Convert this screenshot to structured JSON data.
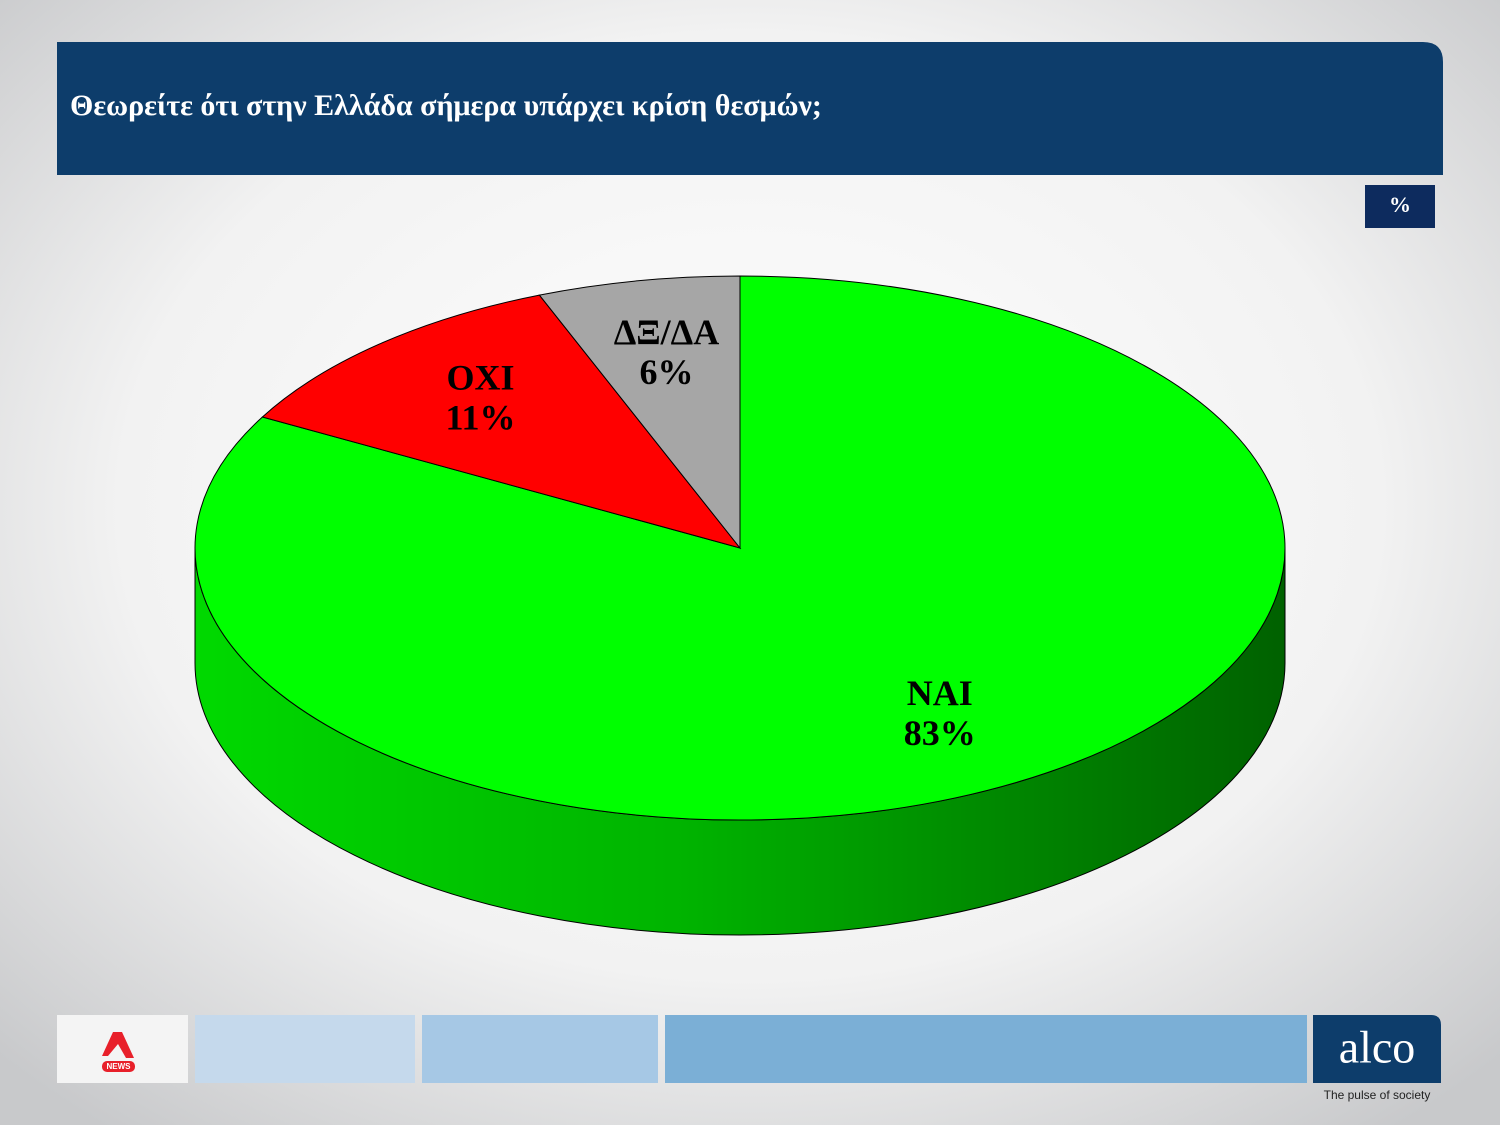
{
  "chart_data": {
    "type": "pie",
    "title": "Θεωρείτε ότι στην Ελλάδα σήμερα υπάρχει κρίση θεσμών;",
    "unit_label": "%",
    "categories": [
      "ΝΑΙ",
      "ΟΧΙ",
      "ΔΞ/ΔΑ"
    ],
    "values": [
      83,
      11,
      6
    ],
    "value_labels": [
      "83%",
      "11%",
      "6%"
    ],
    "colors": [
      "#00ff00",
      "#ff0000",
      "#a6a6a6"
    ]
  },
  "branding": {
    "channel": "NEWS",
    "company": "alco",
    "tagline": "The pulse of society"
  }
}
